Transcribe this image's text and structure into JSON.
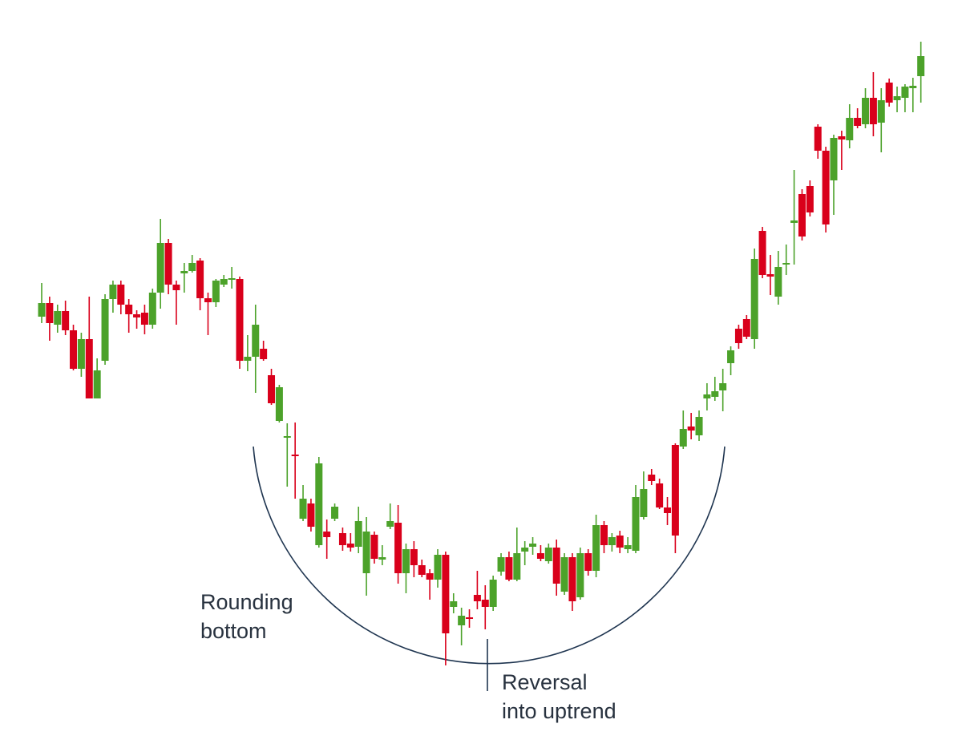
{
  "chart_data": {
    "type": "candlestick",
    "up_color": "#4ca22a",
    "down_color": "#d9001b",
    "ylim": [
      0,
      900
    ],
    "annotations": [
      "Rounding bottom",
      "Reversal into uptrend"
    ],
    "open": [
      505,
      522,
      495,
      512,
      488,
      440,
      477,
      403,
      450,
      527,
      545,
      520,
      508,
      510,
      495,
      535,
      597,
      545,
      559,
      562,
      575,
      528,
      523,
      545,
      551,
      552,
      450,
      455,
      465,
      432,
      375,
      354,
      333,
      253,
      272,
      220,
      237,
      253,
      235,
      222,
      218,
      185,
      233,
      202,
      243,
      248,
      185,
      215,
      195,
      185,
      177,
      208,
      143,
      120,
      130,
      158,
      152,
      143,
      187,
      205,
      177,
      212,
      218,
      210,
      200,
      217,
      162,
      205,
      155,
      210,
      188,
      245,
      220,
      232,
      215,
      213,
      255,
      308,
      297,
      267,
      345,
      343,
      368,
      357,
      403,
      405,
      413,
      447,
      490,
      502,
      477,
      612,
      558,
      530,
      570,
      622,
      658,
      668,
      742,
      712,
      675,
      730,
      725,
      753,
      745,
      778,
      747,
      797,
      775,
      778,
      790,
      805
    ],
    "high": [
      547,
      530,
      520,
      525,
      495,
      485,
      530,
      453,
      533,
      550,
      550,
      527,
      513,
      520,
      540,
      627,
      602,
      550,
      572,
      582,
      578,
      535,
      552,
      557,
      567,
      555,
      482,
      520,
      475,
      440,
      420,
      372,
      373,
      295,
      278,
      330,
      252,
      272,
      242,
      235,
      268,
      255,
      237,
      220,
      272,
      270,
      222,
      225,
      202,
      190,
      215,
      212,
      160,
      142,
      140,
      188,
      170,
      182,
      210,
      212,
      242,
      225,
      230,
      220,
      222,
      227,
      210,
      210,
      217,
      215,
      258,
      250,
      235,
      238,
      230,
      295,
      312,
      315,
      303,
      280,
      347,
      388,
      385,
      388,
      422,
      430,
      440,
      468,
      495,
      507,
      590,
      617,
      582,
      587,
      595,
      688,
      664,
      675,
      745,
      717,
      732,
      737,
      770,
      765,
      790,
      810,
      790,
      802,
      792,
      795,
      803,
      848
    ],
    "low": [
      497,
      475,
      485,
      482,
      438,
      430,
      403,
      403,
      445,
      510,
      508,
      485,
      490,
      483,
      490,
      515,
      533,
      495,
      535,
      560,
      513,
      482,
      517,
      542,
      540,
      440,
      437,
      410,
      450,
      395,
      373,
      293,
      278,
      250,
      237,
      217,
      203,
      250,
      213,
      212,
      210,
      157,
      197,
      195,
      240,
      172,
      160,
      180,
      180,
      152,
      167,
      70,
      135,
      95,
      117,
      140,
      115,
      138,
      182,
      175,
      175,
      195,
      208,
      200,
      197,
      157,
      158,
      138,
      152,
      182,
      180,
      210,
      212,
      210,
      210,
      210,
      252,
      295,
      265,
      245,
      210,
      340,
      352,
      350,
      388,
      400,
      387,
      432,
      465,
      477,
      465,
      553,
      532,
      520,
      557,
      570,
      600,
      630,
      702,
      610,
      632,
      688,
      715,
      740,
      740,
      730,
      710,
      767,
      760,
      760,
      760,
      772
    ],
    "close": [
      522,
      497,
      512,
      488,
      440,
      477,
      403,
      438,
      527,
      545,
      520,
      508,
      504,
      495,
      535,
      597,
      545,
      538,
      562,
      572,
      528,
      523,
      550,
      552,
      553,
      450,
      455,
      495,
      452,
      397,
      417,
      356,
      331,
      278,
      243,
      322,
      230,
      268,
      220,
      217,
      250,
      237,
      203,
      205,
      250,
      185,
      215,
      195,
      183,
      177,
      208,
      110,
      150,
      132,
      128,
      150,
      143,
      177,
      205,
      177,
      210,
      217,
      222,
      203,
      217,
      172,
      205,
      150,
      210,
      188,
      245,
      220,
      230,
      217,
      220,
      280,
      290,
      300,
      267,
      260,
      232,
      365,
      363,
      380,
      408,
      412,
      422,
      463,
      472,
      480,
      577,
      557,
      555,
      567,
      572,
      625,
      605,
      635,
      712,
      620,
      728,
      726,
      753,
      743,
      778,
      745,
      775,
      772,
      780,
      792,
      793,
      830
    ]
  }
}
